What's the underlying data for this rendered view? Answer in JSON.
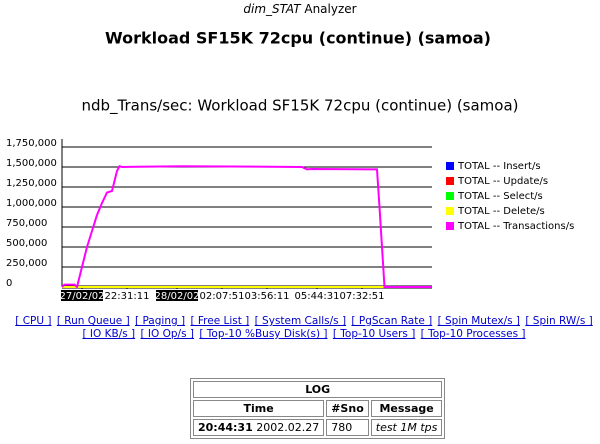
{
  "header": {
    "app_italic": "dim_STAT",
    "app_rest": " Analyzer",
    "title": "Workload SF15K 72cpu (continue) (samoa)"
  },
  "chart_data": {
    "type": "line",
    "title": "ndb_Trans/sec: Workload SF15K 72cpu (continue) (samoa)",
    "xlim": [
      0,
      74
    ],
    "xticks": [
      {
        "value": 4,
        "label": "27/02/02"
      },
      {
        "value": 13,
        "label": "22:31:11"
      },
      {
        "value": 23,
        "label": "28/02/02"
      },
      {
        "value": 32,
        "label": "02:07:51"
      },
      {
        "value": 41,
        "label": "03:56:11"
      },
      {
        "value": 51,
        "label": "05:44:31"
      },
      {
        "value": 60,
        "label": "07:32:51"
      }
    ],
    "ylim": [
      0,
      1750000
    ],
    "yticks": [
      {
        "value": 0,
        "label": "0"
      },
      {
        "value": 250000,
        "label": "250,000"
      },
      {
        "value": 500000,
        "label": "500,000"
      },
      {
        "value": 750000,
        "label": "750,000"
      },
      {
        "value": 1000000,
        "label": "1,000,000"
      },
      {
        "value": 1250000,
        "label": "1,250,000"
      },
      {
        "value": 1500000,
        "label": "1,500,000"
      },
      {
        "value": 1750000,
        "label": "1,750,000"
      }
    ],
    "grid": true,
    "series": [
      {
        "name": "TOTAL -- Insert/s",
        "color": "#0000ff",
        "x": [
          0,
          74
        ],
        "values": [
          0,
          0
        ]
      },
      {
        "name": "TOTAL -- Update/s",
        "color": "#ff0000",
        "x": [
          0,
          74
        ],
        "values": [
          0,
          0
        ]
      },
      {
        "name": "TOTAL -- Select/s",
        "color": "#00ff00",
        "x": [
          0,
          74
        ],
        "values": [
          0,
          0
        ]
      },
      {
        "name": "TOTAL -- Delete/s",
        "color": "#ffff00",
        "x": [
          0,
          74
        ],
        "values": [
          0,
          0
        ]
      },
      {
        "name": "TOTAL -- Transactions/s",
        "color": "#ff00ff",
        "x": [
          0,
          0.5,
          2.5,
          3,
          4,
          5,
          6,
          7,
          8,
          9,
          10,
          11,
          11.5,
          12,
          24,
          48,
          49,
          50,
          63,
          63.5,
          64.5,
          74
        ],
        "values": [
          0,
          30000,
          30000,
          0,
          250000,
          500000,
          700000,
          900000,
          1050000,
          1180000,
          1200000,
          1450000,
          1510000,
          1500000,
          1510000,
          1500000,
          1470000,
          1475000,
          1470000,
          1000000,
          0,
          0
        ]
      }
    ]
  },
  "links": [
    "[ CPU ]",
    "[ Run Queue ]",
    "[ Paging ]",
    "[ Free List ]",
    "[ System Calls/s ]",
    "[ PgScan Rate ]",
    "[ Spin Mutex/s ]",
    "[ Spin RW/s ]",
    "[ IO KB/s ]",
    "[ IO Op/s ]",
    "[ Top-10 %Busy Disk(s) ]",
    "[ Top-10 Users ]",
    "[ Top-10 Processes ]"
  ],
  "log": {
    "title": "LOG",
    "columns": [
      "Time",
      "#Sno",
      "Message"
    ],
    "rows": [
      {
        "time": "20:44:31",
        "date": "2002.02.27",
        "sno": "780",
        "message": "test 1M tps"
      }
    ]
  }
}
